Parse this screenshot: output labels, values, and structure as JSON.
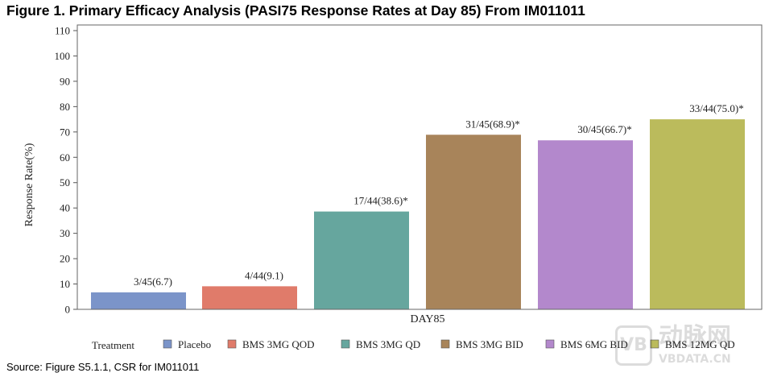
{
  "title": "Figure 1. Primary Efficacy Analysis (PASI75 Response Rates at Day 85) From IM011011",
  "source": "Source: Figure S5.1.1, CSR for IM011011",
  "watermark": {
    "logo": "VB",
    "brand": "动脉网",
    "url": "VBDATA.CN"
  },
  "chart_data": {
    "type": "bar",
    "title": "Figure 1. Primary Efficacy Analysis (PASI75 Response Rates at Day 85) From IM011011",
    "xlabel": "DAY85",
    "ylabel": "Response Rate(%)",
    "ylim": [
      0,
      110
    ],
    "yticks": [
      0,
      10,
      20,
      30,
      40,
      50,
      60,
      70,
      80,
      90,
      100,
      110
    ],
    "categories": [
      "DAY85"
    ],
    "legend_title": "Treatment",
    "legend_position": "bottom",
    "grid": false,
    "series": [
      {
        "name": "Placebo",
        "values": [
          6.7
        ],
        "label": "3/45(6.7)",
        "color": "#7b94c9"
      },
      {
        "name": "BMS 3MG QOD",
        "values": [
          9.1
        ],
        "label": "4/44(9.1)",
        "color": "#e07b6a"
      },
      {
        "name": "BMS 3MG QD",
        "values": [
          38.6
        ],
        "label": "17/44(38.6)*",
        "color": "#66a69e"
      },
      {
        "name": "BMS 3MG BID",
        "values": [
          68.9
        ],
        "label": "31/45(68.9)*",
        "color": "#a8845a"
      },
      {
        "name": "BMS 6MG BID",
        "values": [
          66.7
        ],
        "label": "30/45(66.7)*",
        "color": "#b388cc"
      },
      {
        "name": "BMS 12MG QD",
        "values": [
          75.0
        ],
        "label": "33/44(75.0)*",
        "color": "#bbbb5c"
      }
    ]
  }
}
